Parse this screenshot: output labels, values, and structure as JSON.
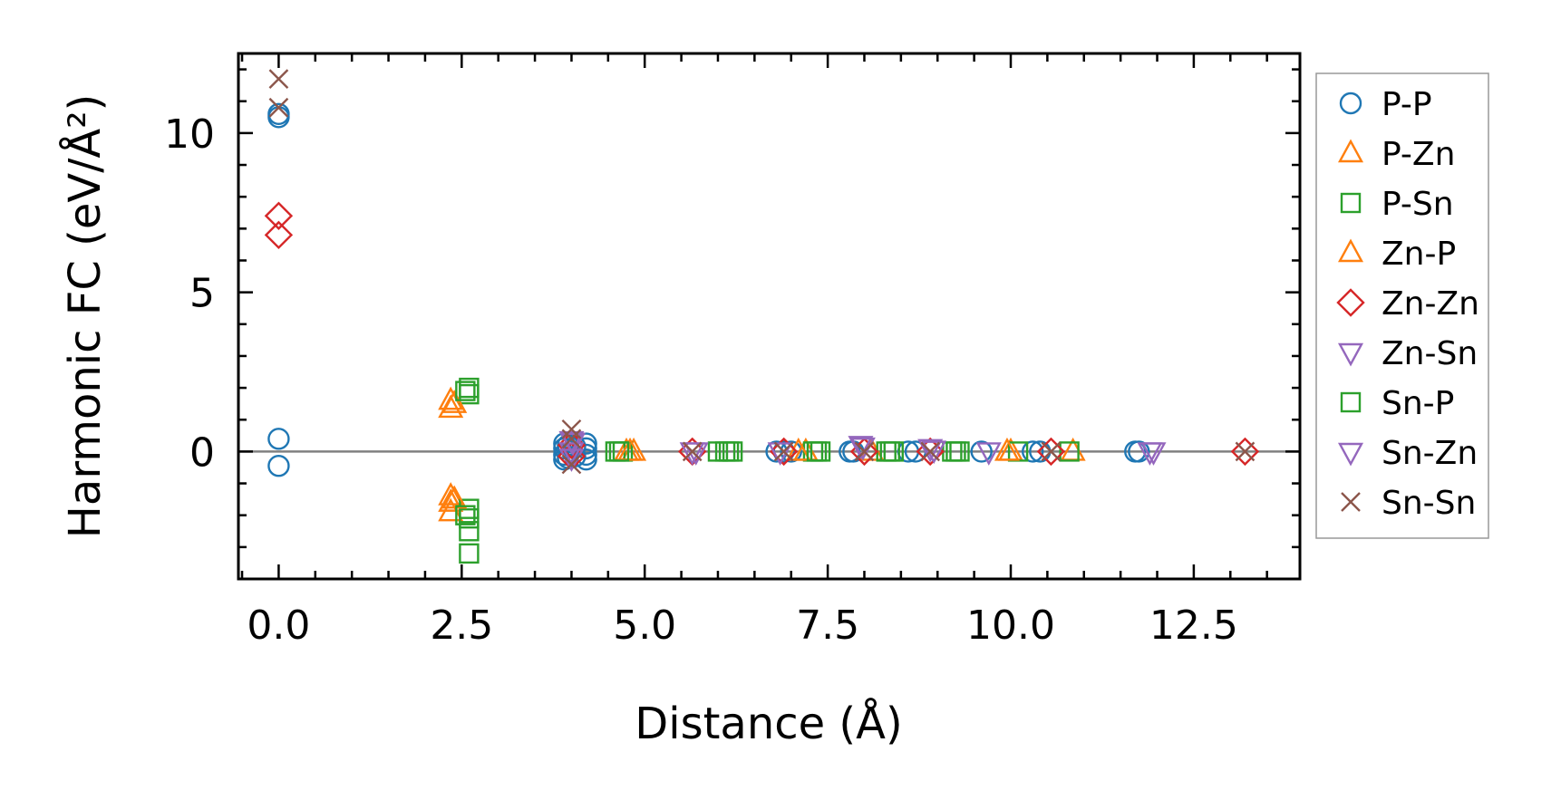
{
  "chart_data": {
    "type": "scatter",
    "title": "",
    "xlabel": "Distance (Å)",
    "ylabel": "Harmonic FC (eV/Å²)",
    "xlim": [
      -0.55,
      13.95
    ],
    "ylim": [
      -4.0,
      12.5
    ],
    "xticks": [
      0.0,
      2.5,
      5.0,
      7.5,
      10.0,
      12.5
    ],
    "xtick_labels": [
      "0.0",
      "2.5",
      "5.0",
      "7.5",
      "10.0",
      "12.5"
    ],
    "yticks": [
      0,
      5,
      10
    ],
    "ytick_labels": [
      "0",
      "5",
      "10"
    ],
    "zero_line": true,
    "grid": false,
    "legend_position": "outside-right",
    "series": [
      {
        "name": "P-P",
        "marker": "circle",
        "color": "#1f77b4",
        "points": [
          [
            0,
            10.6
          ],
          [
            0,
            10.5
          ],
          [
            0,
            0.4
          ],
          [
            0,
            -0.45
          ],
          [
            3.9,
            0.25
          ],
          [
            3.9,
            0.1
          ],
          [
            3.9,
            -0.1
          ],
          [
            3.9,
            -0.25
          ],
          [
            3.95,
            0.2
          ],
          [
            3.95,
            -0.2
          ],
          [
            4.05,
            0.15
          ],
          [
            4.05,
            -0.15
          ],
          [
            4.2,
            0.25
          ],
          [
            4.2,
            0.1
          ],
          [
            4.2,
            -0.1
          ],
          [
            4.2,
            -0.25
          ],
          [
            6.8,
            0
          ],
          [
            6.9,
            0
          ],
          [
            7.0,
            0
          ],
          [
            7.8,
            0
          ],
          [
            7.85,
            0
          ],
          [
            8.6,
            0
          ],
          [
            8.7,
            0
          ],
          [
            9.6,
            0
          ],
          [
            10.3,
            0
          ],
          [
            10.4,
            0
          ],
          [
            11.7,
            0
          ],
          [
            11.75,
            0
          ]
        ]
      },
      {
        "name": "P-Zn",
        "marker": "triangle-up",
        "color": "#ff7f0e",
        "points": [
          [
            2.35,
            1.6
          ],
          [
            2.35,
            1.35
          ],
          [
            2.35,
            -1.4
          ],
          [
            2.35,
            -1.6
          ],
          [
            2.35,
            -1.9
          ],
          [
            4.75,
            0
          ],
          [
            4.85,
            0
          ],
          [
            7.2,
            0
          ],
          [
            8.1,
            0
          ],
          [
            10.0,
            0
          ],
          [
            10.85,
            0
          ]
        ]
      },
      {
        "name": "P-Sn",
        "marker": "square",
        "color": "#2ca02c",
        "points": [
          [
            2.6,
            2.0
          ],
          [
            2.6,
            1.8
          ],
          [
            2.6,
            -1.8
          ],
          [
            2.6,
            -2.1
          ],
          [
            2.6,
            -2.5
          ],
          [
            2.6,
            -3.2
          ],
          [
            4.6,
            0
          ],
          [
            4.7,
            0
          ],
          [
            6.0,
            0
          ],
          [
            6.1,
            0
          ],
          [
            6.2,
            0
          ],
          [
            7.3,
            0
          ],
          [
            7.4,
            0
          ],
          [
            8.3,
            0
          ],
          [
            8.4,
            0
          ],
          [
            9.2,
            0
          ],
          [
            9.3,
            0
          ],
          [
            10.1,
            0
          ],
          [
            10.8,
            0
          ]
        ]
      },
      {
        "name": "Zn-P",
        "marker": "triangle-up",
        "color": "#ff7f0e",
        "points": [
          [
            2.4,
            1.5
          ],
          [
            2.4,
            -1.5
          ],
          [
            4.8,
            0
          ],
          [
            7.1,
            0
          ],
          [
            9.95,
            0
          ]
        ]
      },
      {
        "name": "Zn-Zn",
        "marker": "diamond",
        "color": "#d62728",
        "points": [
          [
            0,
            7.4
          ],
          [
            0,
            6.8
          ],
          [
            4.0,
            0.2
          ],
          [
            4.0,
            -0.15
          ],
          [
            5.65,
            0
          ],
          [
            6.9,
            0
          ],
          [
            8.0,
            0
          ],
          [
            8.9,
            0
          ],
          [
            10.55,
            0
          ],
          [
            13.2,
            0
          ]
        ]
      },
      {
        "name": "Zn-Sn",
        "marker": "triangle-down",
        "color": "#9467bd",
        "points": [
          [
            4.0,
            0.35
          ],
          [
            4.0,
            0
          ],
          [
            4.0,
            -0.2
          ],
          [
            5.65,
            0
          ],
          [
            6.85,
            0
          ],
          [
            7.95,
            0.2
          ],
          [
            8.9,
            0.1
          ],
          [
            9.7,
            0
          ],
          [
            11.95,
            0
          ]
        ]
      },
      {
        "name": "Sn-P",
        "marker": "square",
        "color": "#2ca02c",
        "points": [
          [
            2.55,
            1.9
          ],
          [
            2.55,
            -2.0
          ],
          [
            4.65,
            0
          ],
          [
            6.15,
            0
          ],
          [
            7.35,
            0
          ],
          [
            8.35,
            0
          ],
          [
            9.25,
            0
          ]
        ]
      },
      {
        "name": "Sn-Zn",
        "marker": "triangle-down",
        "color": "#9467bd",
        "points": [
          [
            4.02,
            0.3
          ],
          [
            5.7,
            0
          ],
          [
            7.98,
            0.15
          ],
          [
            8.95,
            0.05
          ],
          [
            11.9,
            0
          ]
        ]
      },
      {
        "name": "Sn-Sn",
        "marker": "x",
        "color": "#8c564b",
        "points": [
          [
            0,
            11.7
          ],
          [
            0,
            10.8
          ],
          [
            4.0,
            0.7
          ],
          [
            4.0,
            0.4
          ],
          [
            4.0,
            -0.4
          ],
          [
            5.65,
            0
          ],
          [
            6.9,
            0
          ],
          [
            8.0,
            0
          ],
          [
            8.9,
            0
          ],
          [
            10.55,
            0
          ],
          [
            13.2,
            0
          ]
        ]
      }
    ]
  }
}
